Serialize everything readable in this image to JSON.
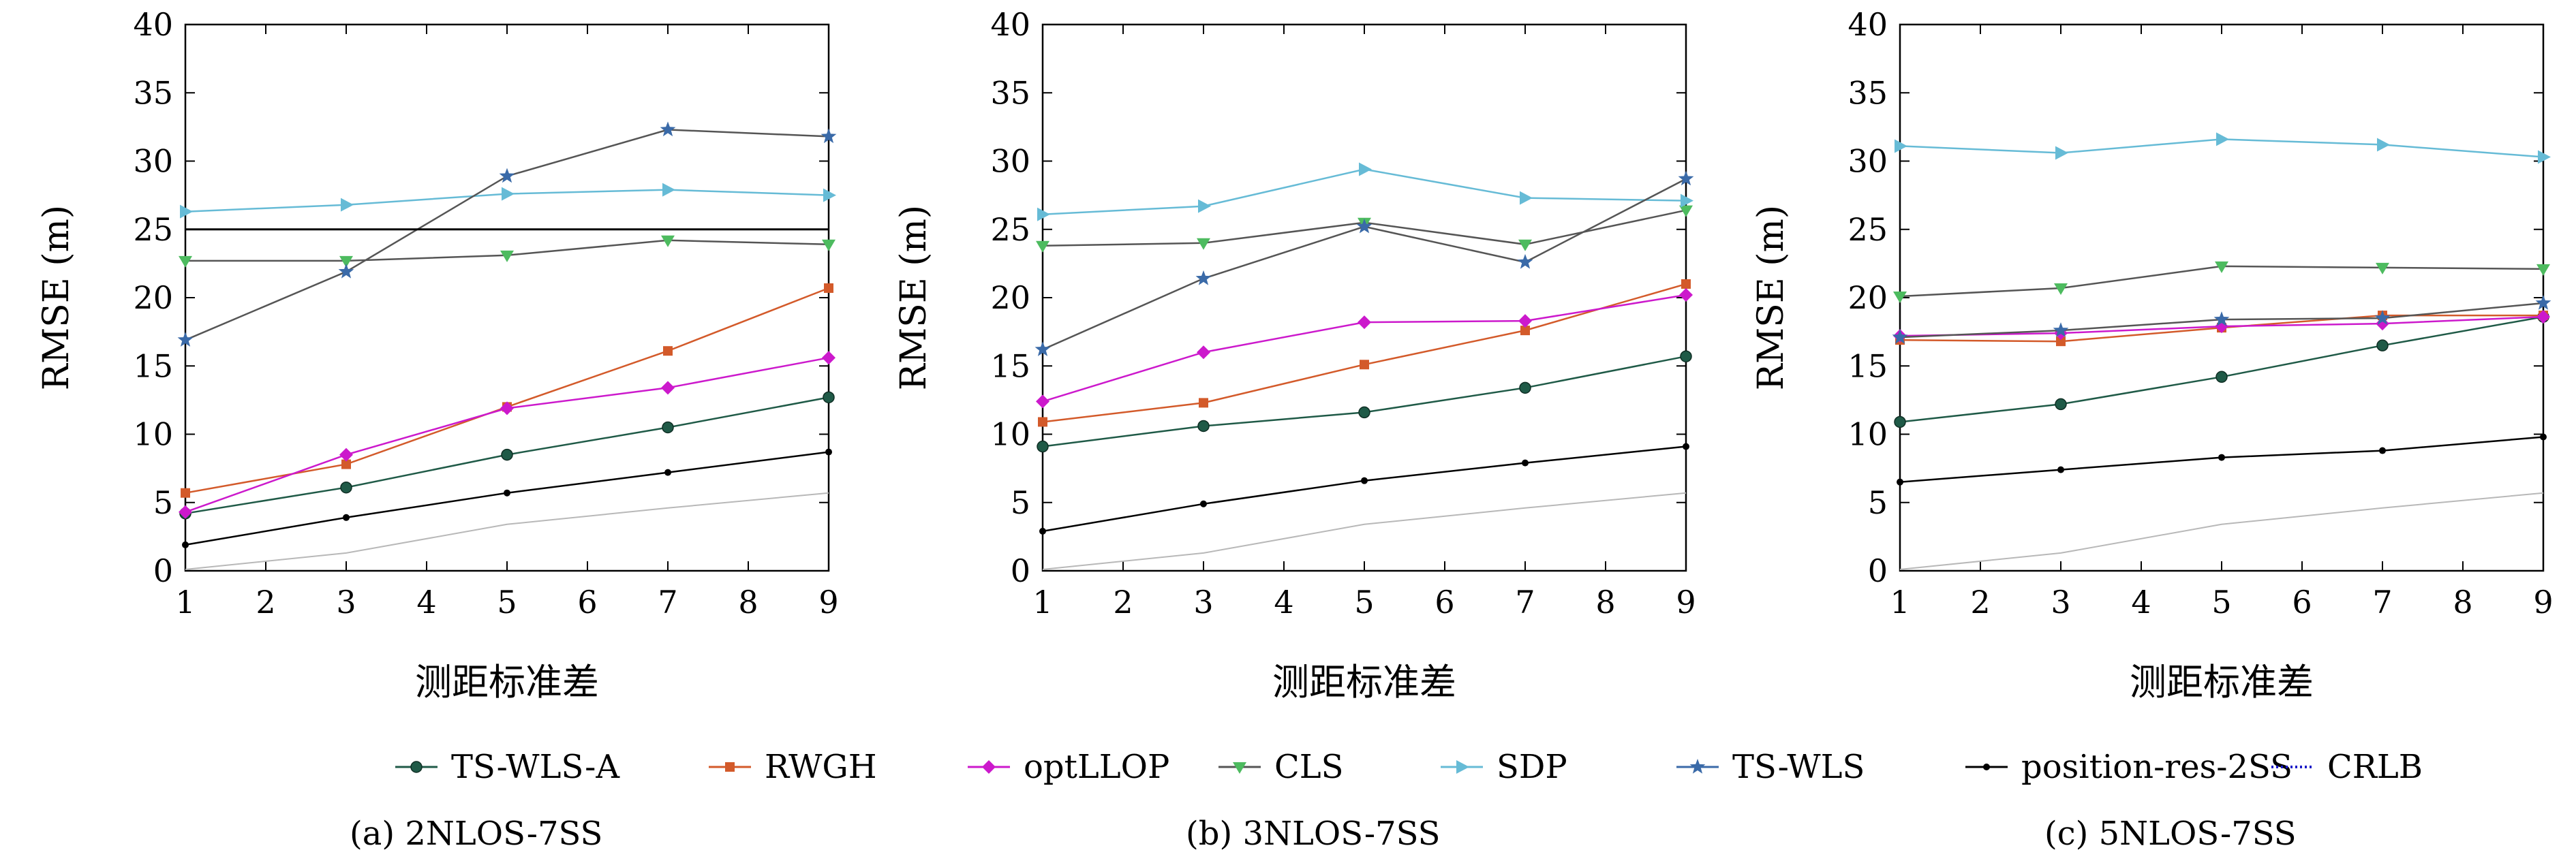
{
  "legend": {
    "items": [
      {
        "name": "TS-WLS-A",
        "color": "#1f5a47",
        "marker": "circle"
      },
      {
        "name": "RWGH",
        "color": "#d35a2a",
        "marker": "square"
      },
      {
        "name": "optLLOP",
        "color": "#cc19cc",
        "marker": "diamond"
      },
      {
        "name": "CLS",
        "color": "#4dbb5f",
        "marker": "triangle-down"
      },
      {
        "name": "SDP",
        "color": "#66bbd6",
        "marker": "triangle-right"
      },
      {
        "name": "TS-WLS",
        "color": "#3a6aa8",
        "marker": "star"
      },
      {
        "name": "position-res-2SS",
        "color": "#000000",
        "marker": "dot"
      },
      {
        "name": "CRLB",
        "color": "#1a1ac8",
        "marker": "dotted"
      }
    ]
  },
  "chart_data": [
    {
      "type": "line",
      "subcaption": "(a) 2NLOS-7SS",
      "xlabel": "测距标准差",
      "ylabel": "RMSE (m)",
      "xlim": [
        1,
        9
      ],
      "ylim": [
        0,
        40
      ],
      "xticks": [
        1,
        2,
        3,
        4,
        5,
        6,
        7,
        8,
        9
      ],
      "yticks": [
        0,
        5,
        10,
        15,
        20,
        25,
        30,
        35,
        40
      ],
      "x": [
        1,
        3,
        5,
        7,
        9
      ],
      "series": [
        {
          "name": "TS-WLS-A",
          "values": [
            4.2,
            6.1,
            8.5,
            10.5,
            12.7
          ]
        },
        {
          "name": "RWGH",
          "values": [
            5.7,
            7.8,
            12.0,
            16.1,
            20.7
          ]
        },
        {
          "name": "optLLOP",
          "values": [
            4.3,
            8.5,
            11.9,
            13.4,
            15.6
          ]
        },
        {
          "name": "CLS",
          "values": [
            22.7,
            22.7,
            23.1,
            24.2,
            23.9
          ]
        },
        {
          "name": "SDP",
          "values": [
            26.3,
            26.8,
            27.6,
            27.9,
            27.5
          ]
        },
        {
          "name": "TS-WLS",
          "values": [
            16.9,
            21.9,
            28.9,
            32.3,
            31.8
          ]
        },
        {
          "name": "position-res-2SS",
          "values": [
            1.9,
            3.9,
            5.7,
            7.2,
            8.7
          ]
        },
        {
          "name": "CRLB",
          "values": [
            0.1,
            1.3,
            3.4,
            4.6,
            5.7
          ]
        },
        {
          "name": "",
          "values": [
            25.0,
            25.0,
            25.0,
            25.0,
            25.0
          ]
        }
      ]
    },
    {
      "type": "line",
      "subcaption": "(b) 3NLOS-7SS",
      "xlabel": "测距标准差",
      "ylabel": "RMSE (m)",
      "xlim": [
        1,
        9
      ],
      "ylim": [
        0,
        40
      ],
      "xticks": [
        1,
        2,
        3,
        4,
        5,
        6,
        7,
        8,
        9
      ],
      "yticks": [
        0,
        5,
        10,
        15,
        20,
        25,
        30,
        35,
        40
      ],
      "x": [
        1,
        3,
        5,
        7,
        9
      ],
      "series": [
        {
          "name": "TS-WLS-A",
          "values": [
            9.1,
            10.6,
            11.6,
            13.4,
            15.7
          ]
        },
        {
          "name": "RWGH",
          "values": [
            10.9,
            12.3,
            15.1,
            17.6,
            21.0
          ]
        },
        {
          "name": "optLLOP",
          "values": [
            12.4,
            16.0,
            18.2,
            18.3,
            20.2
          ]
        },
        {
          "name": "CLS",
          "values": [
            23.8,
            24.0,
            25.5,
            23.9,
            26.4
          ]
        },
        {
          "name": "SDP",
          "values": [
            26.1,
            26.7,
            29.4,
            27.3,
            27.1
          ]
        },
        {
          "name": "TS-WLS",
          "values": [
            16.2,
            21.4,
            25.2,
            22.6,
            28.7
          ]
        },
        {
          "name": "position-res-2SS",
          "values": [
            2.9,
            4.9,
            6.6,
            7.9,
            9.1
          ]
        },
        {
          "name": "CRLB",
          "values": [
            0.1,
            1.3,
            3.4,
            4.6,
            5.7
          ]
        }
      ]
    },
    {
      "type": "line",
      "subcaption": "(c) 5NLOS-7SS",
      "xlabel": "测距标准差",
      "ylabel": "RMSE (m)",
      "xlim": [
        1,
        9
      ],
      "ylim": [
        0,
        40
      ],
      "xticks": [
        1,
        2,
        3,
        4,
        5,
        6,
        7,
        8,
        9
      ],
      "yticks": [
        0,
        5,
        10,
        15,
        20,
        25,
        30,
        35,
        40
      ],
      "x": [
        1,
        3,
        5,
        7,
        9
      ],
      "series": [
        {
          "name": "TS-WLS-A",
          "values": [
            10.9,
            12.2,
            14.2,
            16.5,
            18.6
          ]
        },
        {
          "name": "RWGH",
          "values": [
            16.9,
            16.8,
            17.8,
            18.7,
            18.7
          ]
        },
        {
          "name": "optLLOP",
          "values": [
            17.2,
            17.4,
            17.9,
            18.1,
            18.6
          ]
        },
        {
          "name": "CLS",
          "values": [
            20.1,
            20.7,
            22.3,
            22.2,
            22.1
          ]
        },
        {
          "name": "SDP",
          "values": [
            31.1,
            30.6,
            31.6,
            31.2,
            30.3
          ]
        },
        {
          "name": "TS-WLS",
          "values": [
            17.1,
            17.6,
            18.4,
            18.5,
            19.6
          ]
        },
        {
          "name": "position-res-2SS",
          "values": [
            6.5,
            7.4,
            8.3,
            8.8,
            9.8
          ]
        },
        {
          "name": "CRLB",
          "values": [
            0.1,
            1.3,
            3.4,
            4.6,
            5.7
          ]
        }
      ]
    }
  ]
}
